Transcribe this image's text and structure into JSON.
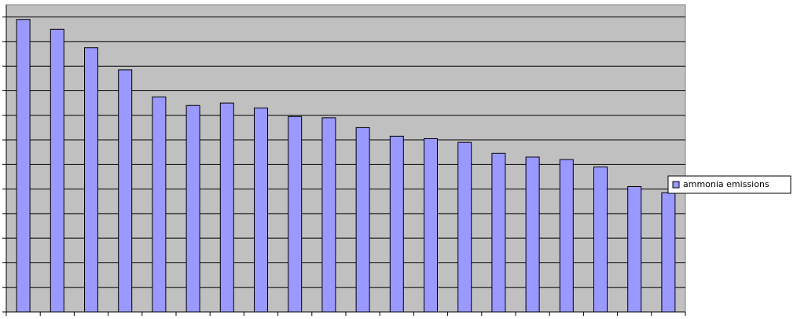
{
  "chart_data": {
    "type": "bar",
    "categories": [
      null,
      null,
      null,
      null,
      null,
      null,
      null,
      null,
      null,
      null,
      null,
      null,
      null,
      null,
      null,
      null,
      null,
      null,
      null,
      null
    ],
    "series": [
      {
        "name": "ammonia emissions",
        "color": "#9999ff",
        "values": [
          11.9,
          11.5,
          10.75,
          9.85,
          8.75,
          8.4,
          8.5,
          8.3,
          7.95,
          7.9,
          7.5,
          7.15,
          7.05,
          6.9,
          6.45,
          6.3,
          6.2,
          5.9,
          5.1,
          4.85
        ]
      }
    ],
    "ylim": [
      0,
      12.5
    ],
    "yticks": [
      0,
      1,
      2,
      3,
      4,
      5,
      6,
      7,
      8,
      9,
      10,
      11,
      12
    ],
    "grid": true,
    "legend": "right"
  }
}
